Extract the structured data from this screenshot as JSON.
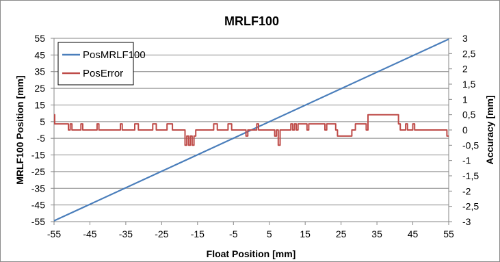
{
  "chart_data": {
    "type": "line",
    "title": "MRLF100",
    "xlabel": "Float Position [mm]",
    "ylabel": "MRLF100 Position [mm]",
    "y2label": "Accuracy [mm]",
    "xlim": [
      -55,
      55
    ],
    "ylim": [
      -55,
      55
    ],
    "y2lim": [
      -3,
      3
    ],
    "grid": true,
    "legend_position": "top-left",
    "x_ticks": [
      "-55",
      "-45",
      "-35",
      "-25",
      "-15",
      "-5",
      "5",
      "15",
      "25",
      "35",
      "45",
      "55"
    ],
    "y_ticks": [
      "55",
      "45",
      "35",
      "25",
      "15",
      "5",
      "-5",
      "-15",
      "-25",
      "-35",
      "-45",
      "-55"
    ],
    "y2_ticks": [
      "3",
      "2,5",
      "2",
      "1,5",
      "1",
      "0,5",
      "0",
      "-0,5",
      "-1",
      "-1,5",
      "-2",
      "-2,5",
      "-3"
    ],
    "series": [
      {
        "name": "PosMRLF100",
        "axis": "left",
        "color": "#4a7ebb",
        "x": [
          -55,
          55
        ],
        "y": [
          -54.5,
          54.5
        ]
      },
      {
        "name": "PosError",
        "axis": "right",
        "color": "#be4b48",
        "x": [
          -55,
          -54.8,
          -54.8,
          -51,
          -51,
          -50.5,
          -50.5,
          -50,
          -50,
          -47.5,
          -47.5,
          -47,
          -47,
          -43,
          -43,
          -42.5,
          -42.5,
          -36.5,
          -36.5,
          -36,
          -36,
          -32.5,
          -32.5,
          -31.5,
          -31.5,
          -27.5,
          -27.5,
          -26.5,
          -26.5,
          -23.5,
          -23.5,
          -22,
          -22,
          -18.5,
          -18.5,
          -18,
          -18,
          -17.5,
          -17.5,
          -17,
          -17,
          -16.5,
          -16.5,
          -16,
          -16,
          -15.5,
          -15.5,
          -10.5,
          -10.5,
          -9.5,
          -9.5,
          -6.5,
          -6.5,
          -5.5,
          -5.5,
          -1.5,
          -1.5,
          -1,
          -1,
          1.5,
          1.5,
          2,
          2,
          6.5,
          6.5,
          7,
          7,
          7.5,
          7.5,
          8,
          8,
          11,
          11,
          11.5,
          11.5,
          12,
          12,
          12.5,
          12.5,
          13,
          13,
          15.5,
          15.5,
          16,
          16,
          20.5,
          20.5,
          21,
          21,
          23.5,
          23.5,
          24,
          24,
          28,
          28,
          29,
          29,
          32,
          32,
          32.5,
          32.5,
          41,
          41,
          41.5,
          41.5,
          43,
          43,
          43.5,
          43.5,
          45,
          45,
          45.5,
          45.5,
          54.5,
          54.5,
          55
        ],
        "y": [
          0.5,
          0.5,
          0.2,
          0.2,
          0,
          0,
          0.2,
          0.2,
          0,
          0,
          0.2,
          0.2,
          0,
          0,
          0.2,
          0.2,
          0,
          0,
          0.2,
          0.2,
          0,
          0,
          0.2,
          0.2,
          0,
          0,
          0.2,
          0.2,
          0,
          0,
          0.2,
          0.2,
          0,
          0,
          -0.5,
          -0.5,
          -0.2,
          -0.2,
          -0.5,
          -0.5,
          -0.2,
          -0.2,
          -0.5,
          -0.5,
          -0.2,
          -0.2,
          0,
          0,
          0.2,
          0.2,
          0,
          0,
          0.2,
          0.2,
          0,
          0,
          -0.2,
          -0.2,
          0,
          0,
          0.2,
          0.2,
          0,
          0,
          -0.2,
          -0.2,
          0,
          0,
          -0.5,
          -0.5,
          0,
          0,
          0.2,
          0.2,
          0,
          0,
          0.2,
          0.2,
          0,
          0,
          0.2,
          0.2,
          0,
          0,
          0.2,
          0.2,
          0,
          0,
          0.2,
          0.2,
          0,
          0,
          -0.2,
          -0.2,
          0,
          0,
          0.2,
          0.2,
          0,
          0,
          0.5,
          0.5,
          0.2,
          0.2,
          0,
          0,
          0.2,
          0.2,
          0,
          0,
          0.2,
          0.2,
          0,
          0,
          -0.2,
          -0.2
        ]
      }
    ]
  }
}
